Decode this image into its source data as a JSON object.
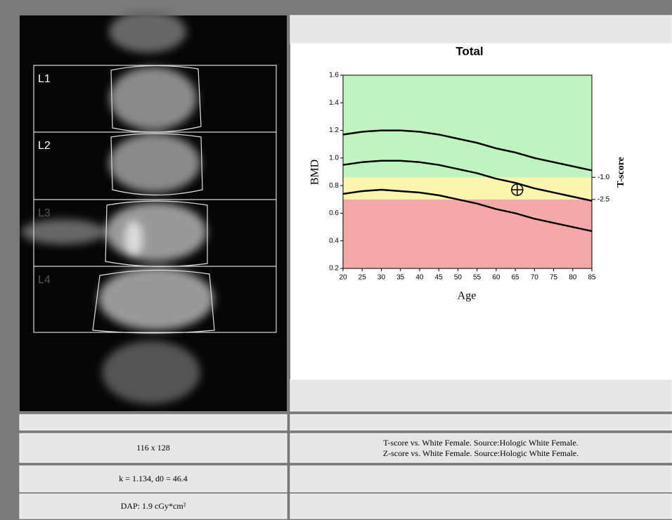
{
  "image": {
    "roi_labels": [
      "L1",
      "L2",
      "L3",
      "L4"
    ]
  },
  "chart_data": {
    "type": "line",
    "title": "Total",
    "x_label": "Age",
    "y_label": "BMD",
    "y2_label": "T-score",
    "x": [
      20,
      25,
      30,
      35,
      40,
      45,
      50,
      55,
      60,
      65,
      70,
      75,
      80,
      85
    ],
    "series": [
      {
        "color": "#000000",
        "values": [
          1.17,
          1.19,
          1.2,
          1.2,
          1.19,
          1.17,
          1.14,
          1.11,
          1.07,
          1.04,
          1.0,
          0.97,
          0.94,
          0.91
        ]
      },
      {
        "color": "#000000",
        "values": [
          0.95,
          0.97,
          0.98,
          0.98,
          0.97,
          0.95,
          0.92,
          0.89,
          0.85,
          0.82,
          0.78,
          0.75,
          0.72,
          0.69
        ]
      },
      {
        "color": "#000000",
        "values": [
          0.74,
          0.76,
          0.77,
          0.76,
          0.75,
          0.73,
          0.7,
          0.67,
          0.63,
          0.6,
          0.56,
          0.53,
          0.5,
          0.47
        ]
      }
    ],
    "patient_point": {
      "x": 65.5,
      "y": 0.77
    },
    "xlim": [
      20,
      85
    ],
    "xticks": [
      20,
      25,
      30,
      35,
      40,
      45,
      50,
      55,
      60,
      65,
      70,
      75,
      80,
      85
    ],
    "ylim": [
      0.2,
      1.6
    ],
    "yticks": [
      0.2,
      0.4,
      0.6,
      0.8,
      {
        "value": 1,
        "label": "1.0"
      },
      1.2,
      1.4,
      1.6
    ],
    "y2lim": [
      -7.17,
      5.92
    ],
    "y2ticks": [
      {
        "value": -2.5,
        "label": "-2.5"
      },
      {
        "value": -1,
        "label": "-1.0"
      }
    ],
    "band_colors": [
      "#f5a8a8",
      "#fbf5ad",
      "#bff3bf"
    ]
  },
  "table": {
    "rows": [
      [
        "116 x 128",
        "T-score vs. White Female. Source:Hologic White Female.",
        "Z-score vs. White Female. Source:Hologic White Female."
      ],
      [
        "k = 1.134, d0 = 46.4"
      ],
      [
        "DAP: 1.9 cGy*cm²"
      ]
    ]
  }
}
